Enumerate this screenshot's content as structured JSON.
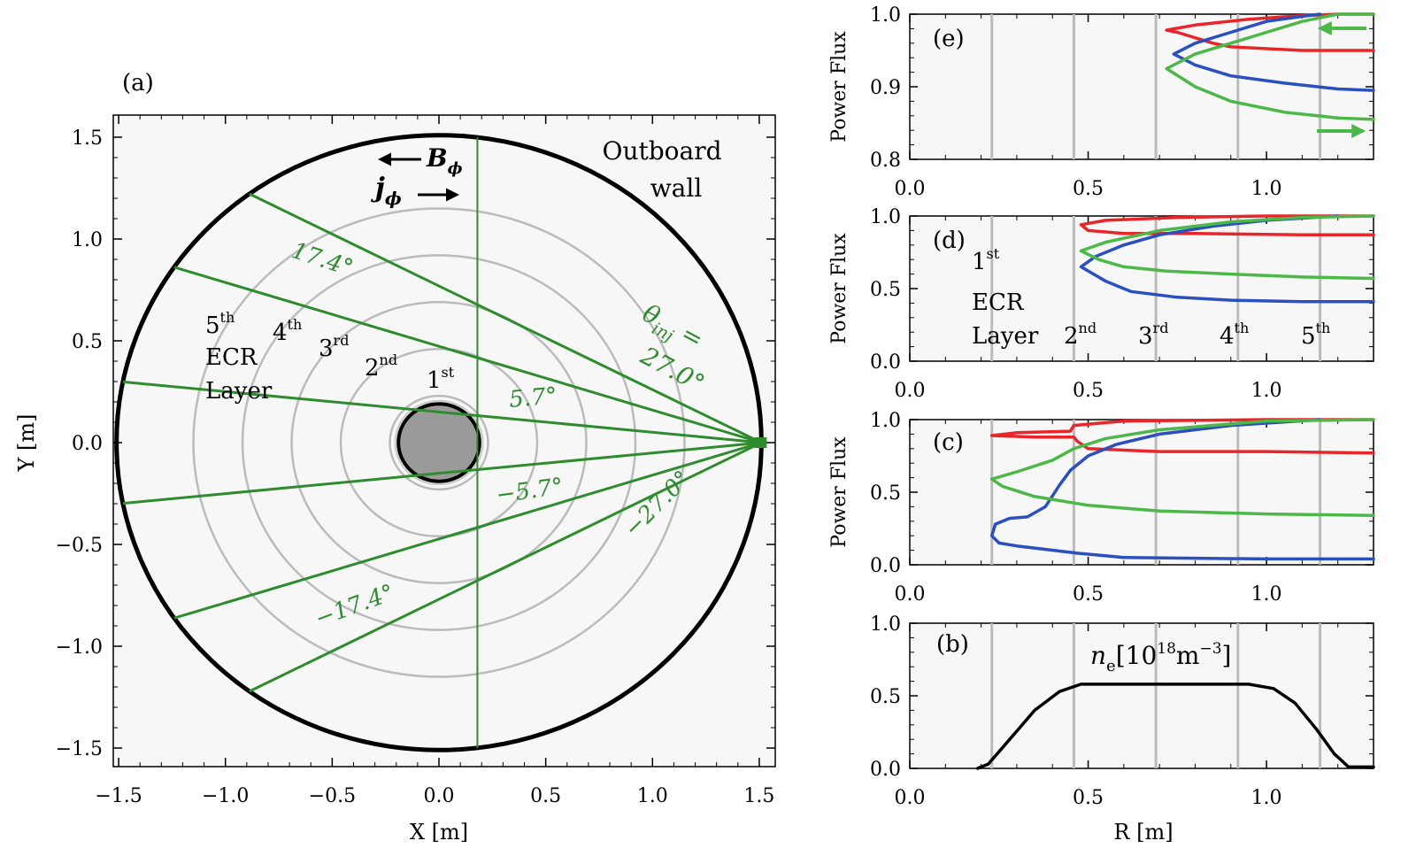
{
  "panel_a": {
    "label": "(a)",
    "xlabel": "X [m]",
    "ylabel": "Y [m]",
    "xticks": [
      "−1.5",
      "−1.0",
      "−0.5",
      "0.0",
      "0.5",
      "1.0",
      "1.5"
    ],
    "yticks": [
      "1.5",
      "1.0",
      "0.5",
      "0.0",
      "−0.5",
      "−1.0",
      "−1.5"
    ],
    "outboard_wall": "Outboard",
    "outboard_wall_2": "wall",
    "b_field": "B",
    "b_field_sub": "ϕ",
    "j_field": "j",
    "j_field_sub": "ϕ",
    "theta_symbol": "θ",
    "theta_sub": "inj",
    "theta_eq": "=",
    "angle_27": "27.0°",
    "angle_17": "17.4°",
    "angle_5": "5.7°",
    "angle_m5": "−5.7°",
    "angle_m17": "−17.4°",
    "angle_m27": "−27.0°",
    "ecr_5": "5",
    "ecr_5_sup": "th",
    "ecr_word": "ECR",
    "layer_word": "Layer",
    "ecr_4": "4",
    "ecr_4_sup": "th",
    "ecr_3": "3",
    "ecr_3_sup": "rd",
    "ecr_2": "2",
    "ecr_2_sup": "nd",
    "ecr_1": "1",
    "ecr_1_sup": "st"
  },
  "right_panels": {
    "xlabel": "R [m]",
    "ylabel": "Power Flux",
    "xticks": [
      "0.0",
      "0.5",
      "1.0"
    ],
    "label_e": "(e)",
    "label_d": "(d)",
    "label_c": "(c)",
    "label_b": "(b)",
    "yticks_e": [
      "1.0",
      "0.9",
      "0.8"
    ],
    "yticks_dc": [
      "1.0",
      "0.5",
      "0.0"
    ],
    "d_1": "1",
    "d_1_sup": "st",
    "d_ecr": "ECR",
    "d_layer": "Layer",
    "d_2": "2",
    "d_2_sup": "nd",
    "d_3": "3",
    "d_3_sup": "rd",
    "d_4": "4",
    "d_4_sup": "th",
    "d_5": "5",
    "d_5_sup": "th",
    "b_label_n": "n",
    "b_label_sub": "e",
    "b_label_rest": "[10",
    "b_label_exp": "18",
    "b_label_unit": "m",
    "b_label_unitexp": "−3",
    "b_label_close": "]"
  },
  "colors": {
    "red": "#e8262a",
    "blue": "#2a4fbf",
    "green": "#4cb848",
    "dark_green": "#2e8b2e",
    "grey": "#bbbbbb"
  },
  "chart_data": [
    {
      "type": "line",
      "panel": "(a)",
      "xlabel": "X [m]",
      "ylabel": "Y [m]",
      "xlim": [
        -1.55,
        1.55
      ],
      "ylim": [
        -1.6,
        1.6
      ],
      "wall_radius": 1.51,
      "center_post_radius": 0.19,
      "ecr_layer_radii": [
        0.23,
        0.46,
        0.69,
        0.92,
        1.15
      ],
      "launch_point": [
        1.51,
        0.0
      ],
      "injection_angles_deg": [
        27.0,
        17.4,
        5.7,
        -5.7,
        -17.4,
        -27.0
      ],
      "vertical_line_x": 0.18
    },
    {
      "type": "line",
      "panel": "(e)",
      "xlabel": "",
      "ylabel": "Power Flux",
      "xlim": [
        0,
        1.3
      ],
      "ylim": [
        0.8,
        1.0
      ],
      "ecr_layers_R": [
        0.23,
        0.46,
        0.69,
        0.92,
        1.15
      ],
      "series": [
        {
          "color": "red",
          "x": [
            1.3,
            1.1,
            0.9,
            0.85,
            0.75,
            0.72,
            0.8,
            0.95,
            1.1,
            1.2,
            1.3
          ],
          "y": [
            0.95,
            0.95,
            0.955,
            0.96,
            0.975,
            0.978,
            0.985,
            0.993,
            0.998,
            1.0,
            1.0
          ]
        },
        {
          "color": "blue",
          "x": [
            1.3,
            1.2,
            1.05,
            0.9,
            0.8,
            0.74,
            0.8,
            0.9,
            1.0,
            1.1,
            1.15
          ],
          "y": [
            0.895,
            0.897,
            0.905,
            0.915,
            0.93,
            0.945,
            0.96,
            0.975,
            0.99,
            0.997,
            1.0
          ]
        },
        {
          "color": "green",
          "x": [
            1.3,
            1.2,
            1.05,
            0.9,
            0.8,
            0.72,
            0.8,
            0.9,
            1.0,
            1.1,
            1.2,
            1.3
          ],
          "y": [
            0.855,
            0.857,
            0.865,
            0.88,
            0.9,
            0.925,
            0.945,
            0.96,
            0.975,
            0.99,
            1.0,
            1.0
          ]
        }
      ]
    },
    {
      "type": "line",
      "panel": "(d)",
      "xlabel": "",
      "ylabel": "Power Flux",
      "xlim": [
        0,
        1.3
      ],
      "ylim": [
        0,
        1.0
      ],
      "ecr_layers_R": [
        0.23,
        0.46,
        0.69,
        0.92,
        1.15
      ],
      "series": [
        {
          "color": "red",
          "x": [
            1.3,
            1.1,
            0.8,
            0.6,
            0.5,
            0.48,
            0.55,
            0.75,
            1.0,
            1.3
          ],
          "y": [
            0.87,
            0.87,
            0.88,
            0.88,
            0.9,
            0.94,
            0.97,
            0.99,
            1.0,
            1.0
          ]
        },
        {
          "color": "blue",
          "x": [
            1.3,
            1.1,
            0.9,
            0.75,
            0.62,
            0.55,
            0.48,
            0.52,
            0.6,
            0.7,
            0.85,
            1.0,
            1.2
          ],
          "y": [
            0.41,
            0.41,
            0.42,
            0.44,
            0.48,
            0.55,
            0.65,
            0.72,
            0.8,
            0.87,
            0.93,
            0.97,
            1.0
          ]
        },
        {
          "color": "green",
          "x": [
            1.3,
            1.1,
            0.9,
            0.72,
            0.6,
            0.53,
            0.48,
            0.55,
            0.7,
            0.9,
            1.1,
            1.3
          ],
          "y": [
            0.57,
            0.58,
            0.6,
            0.62,
            0.65,
            0.7,
            0.76,
            0.82,
            0.9,
            0.96,
            0.99,
            1.0
          ]
        }
      ]
    },
    {
      "type": "line",
      "panel": "(c)",
      "xlabel": "",
      "ylabel": "Power Flux",
      "xlim": [
        0,
        1.3
      ],
      "ylim": [
        0,
        1.0
      ],
      "ecr_layers_R": [
        0.23,
        0.46,
        0.69,
        0.92,
        1.15
      ],
      "series": [
        {
          "color": "red",
          "x": [
            1.3,
            1.0,
            0.7,
            0.5,
            0.47,
            0.46,
            0.35,
            0.23,
            0.3,
            0.45,
            0.46,
            0.6,
            1.0,
            1.3
          ],
          "y": [
            0.77,
            0.78,
            0.78,
            0.8,
            0.85,
            0.88,
            0.88,
            0.89,
            0.91,
            0.92,
            0.96,
            0.99,
            1.0,
            1.0
          ]
        },
        {
          "color": "blue",
          "x": [
            1.3,
            1.0,
            0.6,
            0.47,
            0.3,
            0.25,
            0.23,
            0.24,
            0.28,
            0.33,
            0.38,
            0.42,
            0.45,
            0.5,
            0.58,
            0.7,
            0.9,
            1.15
          ],
          "y": [
            0.04,
            0.04,
            0.05,
            0.08,
            0.13,
            0.15,
            0.2,
            0.28,
            0.32,
            0.33,
            0.4,
            0.55,
            0.65,
            0.75,
            0.83,
            0.9,
            0.96,
            1.0
          ]
        },
        {
          "color": "green",
          "x": [
            1.3,
            1.0,
            0.7,
            0.5,
            0.35,
            0.26,
            0.23,
            0.3,
            0.4,
            0.46,
            0.55,
            0.7,
            1.0,
            1.3
          ],
          "y": [
            0.34,
            0.35,
            0.37,
            0.41,
            0.47,
            0.54,
            0.59,
            0.64,
            0.72,
            0.8,
            0.87,
            0.93,
            0.99,
            1.0
          ]
        }
      ]
    },
    {
      "type": "line",
      "panel": "(b)",
      "xlabel": "R [m]",
      "ylabel": "",
      "xlim": [
        0,
        1.3
      ],
      "ylim": [
        0,
        1.0
      ],
      "ecr_layers_R": [
        0.23,
        0.46,
        0.69,
        0.92,
        1.15
      ],
      "series": [
        {
          "color": "black",
          "x": [
            0.19,
            0.22,
            0.28,
            0.35,
            0.42,
            0.48,
            0.6,
            0.8,
            0.95,
            1.02,
            1.08,
            1.14,
            1.19,
            1.23,
            1.3
          ],
          "y": [
            0.0,
            0.03,
            0.2,
            0.4,
            0.53,
            0.58,
            0.58,
            0.58,
            0.58,
            0.55,
            0.45,
            0.27,
            0.1,
            0.01,
            0.01
          ]
        }
      ]
    }
  ]
}
